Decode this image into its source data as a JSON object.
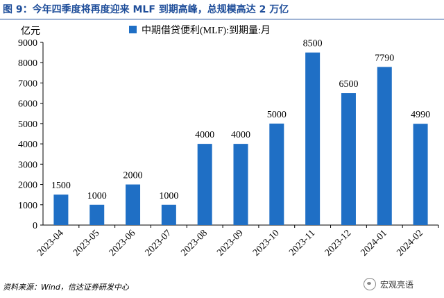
{
  "title": "图 9：今年四季度将再度迎来 MLF 到期高峰，总规模高达 2 万亿",
  "unit_label": "亿元",
  "source_text": "资料来源：Wind，信达证券研发中心",
  "watermark": {
    "text": "宏观亮语",
    "icon": "wechat-icon"
  },
  "colors": {
    "bar": "#1f6fc5",
    "title": "#1f4e9a",
    "axis": "#000000"
  },
  "chart_data": {
    "type": "bar",
    "title": "图 9：今年四季度将再度迎来 MLF 到期高峰，总规模高达 2 万亿",
    "xlabel": "",
    "ylabel": "亿元",
    "legend": "中期借贷便利(MLF):到期量:月",
    "legend_position": "top-right",
    "categories": [
      "2023-04",
      "2023-05",
      "2023-06",
      "2023-07",
      "2023-08",
      "2023-09",
      "2023-10",
      "2023-11",
      "2023-12",
      "2024-01",
      "2024-02"
    ],
    "values": [
      1500,
      1000,
      2000,
      1000,
      4000,
      4000,
      5000,
      8500,
      6500,
      7790,
      4990
    ],
    "data_labels": [
      "1500",
      "1000",
      "2000",
      "1000",
      "4000",
      "4000",
      "5000",
      "8500",
      "6500",
      "7790",
      "4990"
    ],
    "ylim": [
      0,
      9000
    ],
    "yticks": [
      0,
      1000,
      2000,
      3000,
      4000,
      5000,
      6000,
      7000,
      8000,
      9000
    ],
    "ytick_labels": [
      "0",
      "1000",
      "2000",
      "3000",
      "4000",
      "5000",
      "6000",
      "7000",
      "8000",
      "9000"
    ],
    "grid": false
  }
}
